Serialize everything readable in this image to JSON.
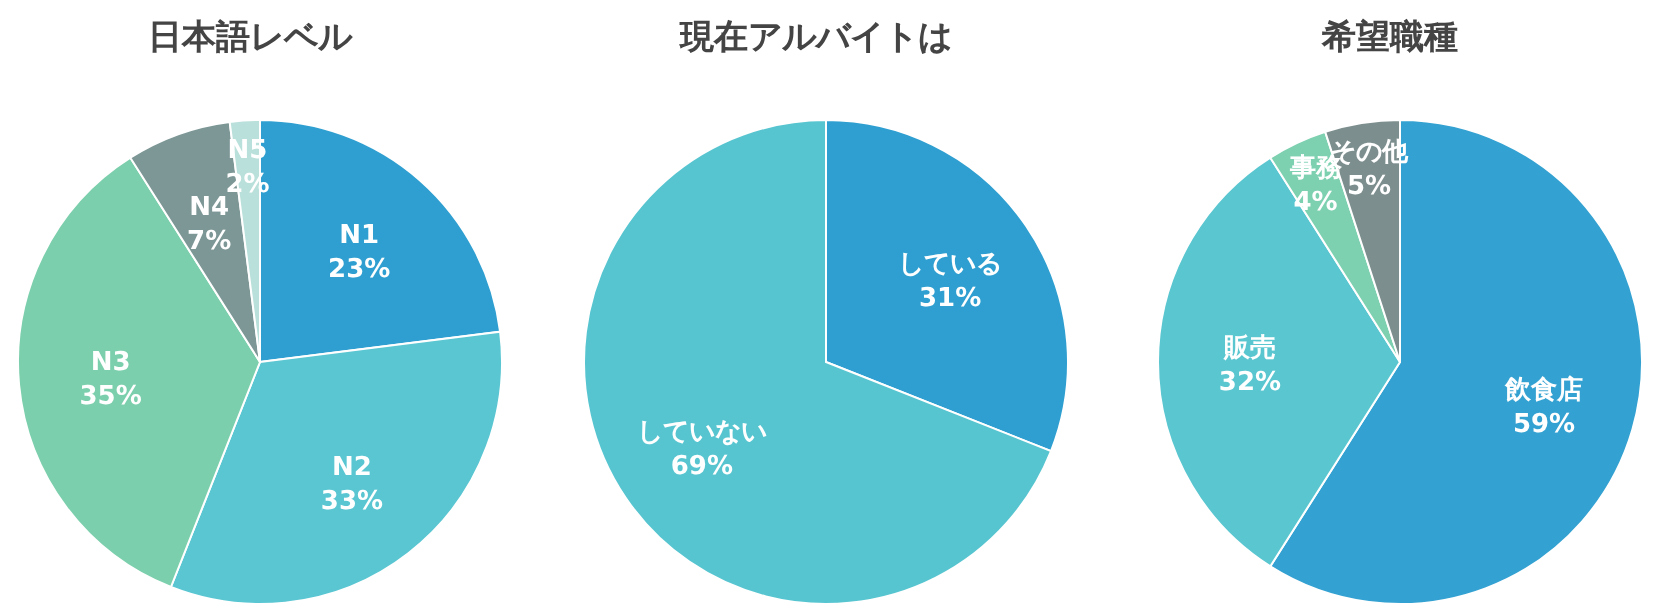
{
  "chart_data": [
    {
      "type": "pie",
      "title": "日本語レベル",
      "categories": [
        "N1",
        "N2",
        "N3",
        "N4",
        "N5"
      ],
      "values": [
        23,
        33,
        35,
        7,
        2
      ],
      "value_labels": [
        "23%",
        "33%",
        "35%",
        "7%",
        "2%"
      ],
      "colors": [
        "#2e9fd0",
        "#59c6d2",
        "#7ccfac",
        "#7d9696",
        "#b9e0da"
      ]
    },
    {
      "type": "pie",
      "title": "現在アルバイトは",
      "categories": [
        "している",
        "していない"
      ],
      "values": [
        31,
        69
      ],
      "value_labels": [
        "31%",
        "69%"
      ],
      "colors": [
        "#2e9fd0",
        "#57c5d0"
      ]
    },
    {
      "type": "pie",
      "title": "希望職種",
      "categories": [
        "飲食店",
        "販売",
        "事務",
        "その他"
      ],
      "values": [
        59,
        32,
        4,
        5
      ],
      "value_labels": [
        "59%",
        "32%",
        "4%",
        "5%"
      ],
      "colors": [
        "#33a1d1",
        "#5ac6d0",
        "#7dd0b0",
        "#7d8e8e"
      ]
    }
  ]
}
